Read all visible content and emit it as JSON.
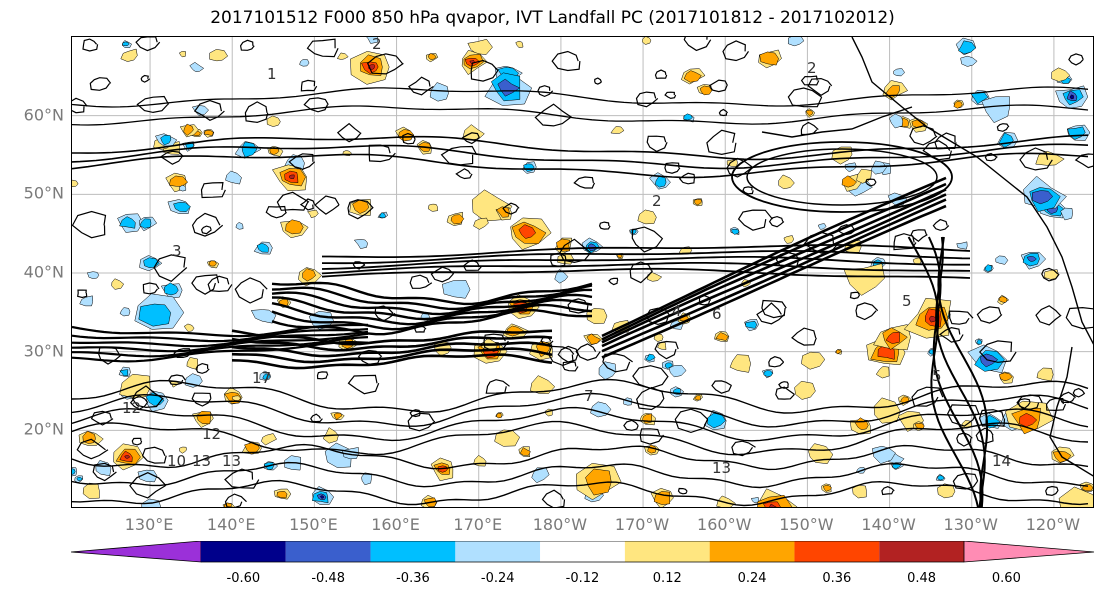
{
  "title": "2017101512 F000 850 hPa qvapor, IVT Landfall PC (2017101812 - 2017102012)",
  "map": {
    "lat_labels": [
      "60°N",
      "50°N",
      "40°N",
      "30°N",
      "20°N"
    ],
    "lon_labels": [
      "130°E",
      "140°E",
      "150°E",
      "160°E",
      "170°E",
      "180°W",
      "170°W",
      "160°W",
      "150°W",
      "140°W",
      "130°W",
      "120°W"
    ],
    "lat_range": [
      10,
      70
    ],
    "lon_range": [
      120.5,
      245
    ],
    "projection": "PlateCarree",
    "grid": true,
    "contour_labels": [
      "2",
      "1",
      "2",
      "2",
      "3",
      "5",
      "6",
      "4",
      "7",
      "12",
      "10",
      "13",
      "13",
      "13",
      "14",
      "17",
      "5",
      "12"
    ],
    "fill_colors": {
      "positive": [
        "#ffe680",
        "#ffa500",
        "#ff4500",
        "#b22222"
      ],
      "negative": [
        "#b0e0ff",
        "#00bfff",
        "#3a5fcd",
        "#00008b"
      ]
    }
  },
  "colorbar": {
    "tick_labels": [
      "-0.60",
      "-0.48",
      "-0.36",
      "-0.24",
      "-0.12",
      "0.12",
      "0.24",
      "0.36",
      "0.48",
      "0.60"
    ],
    "colors": [
      "#9b30d9",
      "#00008b",
      "#3a5fcd",
      "#00bfff",
      "#b0e0ff",
      "#ffffff",
      "#ffe680",
      "#ffa500",
      "#ff4500",
      "#b22222",
      "#ff8cb4"
    ],
    "extend": "both"
  }
}
